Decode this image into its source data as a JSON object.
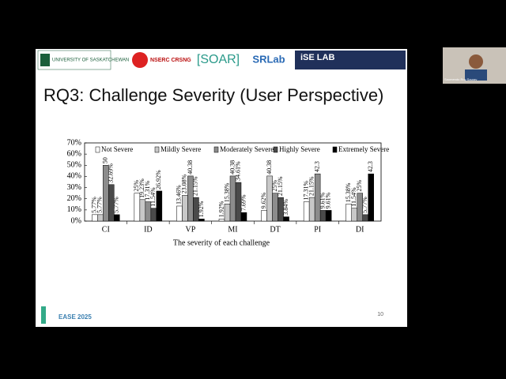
{
  "slide": {
    "logos": [
      "UNIVERSITY OF SASKATCHEWAN",
      "NSERC CRSNG",
      "[SOAR]",
      "SRLab",
      "iSE LAB"
    ],
    "title": "RQ3: Challenge Severity (User Perspective)",
    "page_number": "10",
    "footer": "EASE 2025"
  },
  "participant": {
    "name": "Saumendu Roy Saurav"
  },
  "chart_data": {
    "type": "bar",
    "x_label": "The severity of each challenge",
    "categories": [
      "CI",
      "ID",
      "VP",
      "MI",
      "DT",
      "PI",
      "DI"
    ],
    "series": [
      {
        "name": "Not Severe",
        "color": "#ffffff",
        "values": [
          5.77,
          25,
          13.46,
          1.92,
          9.62,
          17.31,
          15.38
        ],
        "value_labels": [
          "5.77%",
          "25%",
          "13.46%",
          "1.92%",
          "9.62%",
          "17.31%",
          "15.38%"
        ]
      },
      {
        "name": "Mildly Severe",
        "color": "#c8c8c8",
        "values": [
          5.77,
          19.23,
          23.08,
          15.38,
          40.38,
          21.15,
          11.54
        ],
        "value_labels": [
          "5.77%",
          "19.23%",
          "23.08%",
          "15.38%",
          "40.38",
          "21.15%",
          "11.54%"
        ]
      },
      {
        "name": "Moderately Severe",
        "color": "#8c8c8c",
        "values": [
          50,
          17.31,
          40.38,
          40.38,
          25,
          42.3,
          25
        ],
        "value_labels": [
          "50",
          "17.31%",
          "40.38",
          "40.38",
          "25%",
          "42.3",
          "25%"
        ]
      },
      {
        "name": "Highly Severe",
        "color": "#4a4a4a",
        "values": [
          32.69,
          11.54,
          21.15,
          34.61,
          21.15,
          9.61,
          5.77
        ],
        "value_labels": [
          "32.69%",
          "11.54%",
          "21.15%",
          "34.61%",
          "21.15%",
          "9.61%",
          "5.77%"
        ]
      },
      {
        "name": "Extremely Severe",
        "color": "#000000",
        "values": [
          5.77,
          26.92,
          1.92,
          7.69,
          3.84,
          9.61,
          42.3
        ],
        "value_labels": [
          "5.77%",
          "26.92%",
          "1.92%",
          "7.69%",
          "3.84%",
          "9.61%",
          "42.3"
        ]
      }
    ],
    "ylim": [
      0,
      70
    ],
    "yticks": [
      {
        "value": 0,
        "label": "0%"
      },
      {
        "value": 10,
        "label": "10%"
      },
      {
        "value": 20,
        "label": "20%"
      },
      {
        "value": 30,
        "label": "30%"
      },
      {
        "value": 40,
        "label": "40%"
      },
      {
        "value": 50,
        "label": "50%"
      },
      {
        "value": 60,
        "label": "60%"
      },
      {
        "value": 70,
        "label": "70%"
      }
    ],
    "legend": "top"
  }
}
